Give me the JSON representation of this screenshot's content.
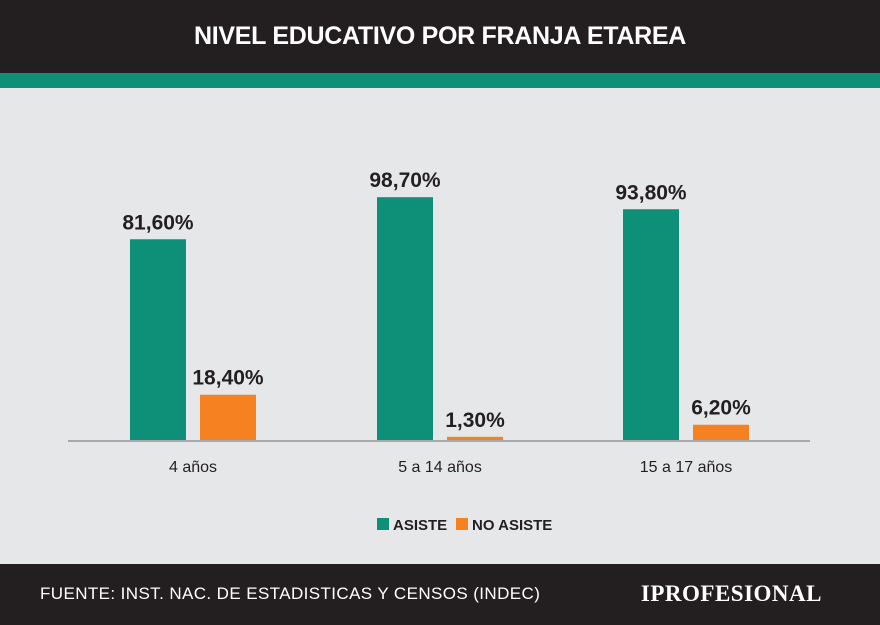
{
  "header": {
    "title": "NIVEL EDUCATIVO POR FRANJA ETAREA"
  },
  "colors": {
    "header_bg": "#231f20",
    "accent": "#0e8f77",
    "asiste": "#0e8f77",
    "no_asiste": "#f68121",
    "background": "#e6e7e8"
  },
  "chart_data": {
    "type": "bar",
    "title": "NIVEL EDUCATIVO POR FRANJA ETAREA",
    "categories": [
      "4 años",
      "5 a 14 años",
      "15 a 17 años"
    ],
    "series": [
      {
        "name": "ASISTE",
        "values": [
          81.6,
          98.7,
          93.8
        ],
        "labels": [
          "81,60%",
          "98,70%",
          "93,80%"
        ],
        "color": "#0e8f77"
      },
      {
        "name": "NO ASISTE",
        "values": [
          18.4,
          1.3,
          6.2
        ],
        "labels": [
          "18,40%",
          "1,30%",
          "6,20%"
        ],
        "color": "#f68121"
      }
    ],
    "xlabel": "",
    "ylabel": "",
    "ylim": [
      0,
      100
    ],
    "grid": false,
    "legend": "bottom-center"
  },
  "footer": {
    "source": "FUENTE: INST. NAC. DE ESTADISTICAS Y CENSOS (INDEC)",
    "brand": "IPROFESIONAL"
  }
}
